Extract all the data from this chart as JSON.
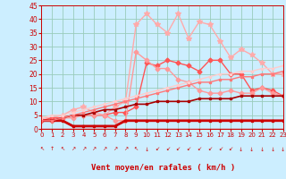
{
  "background_color": "#cceeff",
  "grid_color": "#99ccbb",
  "xlabel": "Vent moyen/en rafales ( km/h )",
  "tick_color": "#cc0000",
  "xlim": [
    0,
    23
  ],
  "ylim": [
    0,
    45
  ],
  "yticks": [
    0,
    5,
    10,
    15,
    20,
    25,
    30,
    35,
    40,
    45
  ],
  "xticks": [
    0,
    1,
    2,
    3,
    4,
    5,
    6,
    7,
    8,
    9,
    10,
    11,
    12,
    13,
    14,
    15,
    16,
    17,
    18,
    19,
    20,
    21,
    22,
    23
  ],
  "arrows": [
    "↖",
    "↑",
    "↖",
    "↗",
    "↗",
    "↗",
    "↗",
    "↗",
    "↗",
    "↖",
    "↓",
    "↙",
    "↙",
    "↙",
    "↙",
    "↙",
    "↙",
    "↙",
    "↙",
    "↓",
    "↓",
    "↓",
    "↓",
    "↓"
  ],
  "series": [
    {
      "color": "#ffaaaa",
      "linewidth": 1.0,
      "marker": "*",
      "markersize": 4,
      "values": [
        4,
        4,
        5,
        7,
        8,
        6,
        5,
        8,
        10,
        38,
        42,
        38,
        35,
        42,
        33,
        39,
        38,
        32,
        26,
        29,
        27,
        24,
        20,
        20
      ]
    },
    {
      "color": "#ff5555",
      "linewidth": 1.0,
      "marker": "D",
      "markersize": 2.5,
      "values": [
        3,
        4,
        4,
        5,
        5,
        5,
        5,
        6,
        6,
        8,
        24,
        23,
        25,
        24,
        23,
        21,
        25,
        25,
        20,
        20,
        14,
        15,
        14,
        12
      ]
    },
    {
      "color": "#ff9999",
      "linewidth": 1.0,
      "marker": "D",
      "markersize": 2.5,
      "values": [
        3,
        3,
        4,
        4,
        5,
        5,
        5,
        3,
        3,
        28,
        25,
        22,
        22,
        18,
        17,
        14,
        13,
        13,
        14,
        13,
        13,
        15,
        13,
        12
      ]
    },
    {
      "color": "#cc0000",
      "linewidth": 2.0,
      "marker": "s",
      "markersize": 2.0,
      "values": [
        3,
        3,
        3,
        1,
        1,
        1,
        1,
        1,
        3,
        3,
        3,
        3,
        3,
        3,
        3,
        3,
        3,
        3,
        3,
        3,
        3,
        3,
        3,
        3
      ]
    },
    {
      "color": "#aa0000",
      "linewidth": 1.2,
      "marker": "s",
      "markersize": 2.0,
      "values": [
        3,
        3,
        4,
        5,
        5,
        6,
        7,
        7,
        8,
        9,
        9,
        10,
        10,
        10,
        10,
        11,
        11,
        11,
        11,
        12,
        12,
        12,
        12,
        12
      ]
    },
    {
      "color": "#ff7777",
      "linewidth": 1.0,
      "marker": "s",
      "markersize": 2.0,
      "values": [
        3,
        3,
        4,
        5,
        6,
        7,
        8,
        9,
        10,
        11,
        12,
        13,
        14,
        15,
        16,
        17,
        17,
        18,
        18,
        19,
        19,
        20,
        20,
        21
      ]
    },
    {
      "color": "#ffcccc",
      "linewidth": 1.0,
      "marker": "s",
      "markersize": 2.0,
      "values": [
        4,
        5,
        5,
        6,
        7,
        8,
        9,
        10,
        11,
        12,
        13,
        14,
        15,
        16,
        17,
        18,
        19,
        20,
        20,
        21,
        21,
        22,
        22,
        23
      ]
    }
  ]
}
